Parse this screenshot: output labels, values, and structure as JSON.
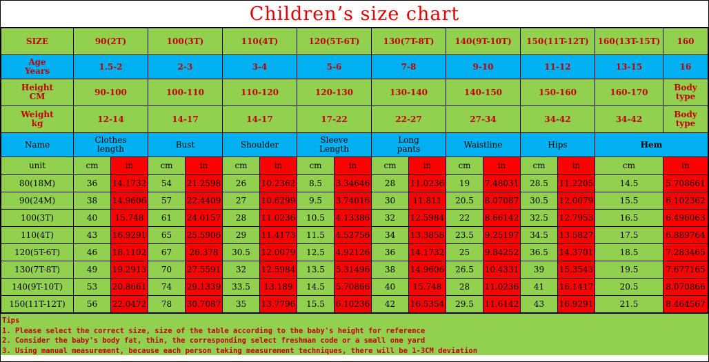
{
  "title": "Children’s size chart",
  "size_row": {
    "label": "SIZE",
    "values": [
      "90(2T)",
      "100(3T)",
      "110(4T)",
      "120(5T-6T)",
      "130(7T-8T)",
      "140(9T-10T)",
      "150(11T-12T)",
      "160(13T-15T)",
      "160"
    ]
  },
  "age_row": {
    "label": "Age\nYears",
    "values": [
      "1.5-2",
      "2-3",
      "3-4",
      "5-6",
      "7-8",
      "9-10",
      "11-12",
      "13-15",
      "16"
    ]
  },
  "height_row": {
    "label": "Height\nCM",
    "values": [
      "90-100",
      "100-110",
      "110-120",
      "120-130",
      "130-140",
      "140-150",
      "150-160",
      "160-170",
      "Body\ntype"
    ]
  },
  "weight_row": {
    "label": "Weight\nkg",
    "values": [
      "12-14",
      "14-17",
      "14-17",
      "17-22",
      "22-27",
      "27-34",
      "34-42",
      "34-42",
      "Body\ntype"
    ]
  },
  "measure_header": {
    "label": "Name",
    "values": [
      "Clothes\nlength",
      "Bust",
      "Shoulder",
      "Sleeve\nLength",
      "Long\npants",
      "Waistline",
      "Hips",
      "Hem"
    ]
  },
  "unit_row": {
    "label": "unit",
    "cm": "cm",
    "in": "in"
  },
  "data_rows": [
    {
      "size": "80(18M)",
      "cells": [
        "36",
        "14.1732",
        "54",
        "21.2598",
        "26",
        "10.2362",
        "8.5",
        "3.34646",
        "28",
        "11.0236",
        "19",
        "7.48031",
        "28.5",
        "11.2205",
        "14.5",
        "5.708661"
      ]
    },
    {
      "size": "90(24M)",
      "cells": [
        "38",
        "14.9606",
        "57",
        "22.4409",
        "27",
        "10.6299",
        "9.5",
        "3.74016",
        "30",
        "11.811",
        "20.5",
        "8.07087",
        "30.5",
        "12.0079",
        "15.5",
        "6.102362"
      ]
    },
    {
      "size": "100(3T)",
      "cells": [
        "40",
        "15.748",
        "61",
        "24.0157",
        "28",
        "11.0236",
        "10.5",
        "4.13386",
        "32",
        "12.5984",
        "22",
        "8.66142",
        "32.5",
        "12.7953",
        "16.5",
        "6.496063"
      ]
    },
    {
      "size": "110(4T)",
      "cells": [
        "43",
        "16.9291",
        "65",
        "25.5906",
        "29",
        "11.4173",
        "11.5",
        "4.52756",
        "34",
        "13.3858",
        "23.5",
        "9.25197",
        "34.5",
        "13.5827",
        "17.5",
        "6.889764"
      ]
    },
    {
      "size": "120(5T-6T)",
      "cells": [
        "46",
        "18.1102",
        "67",
        "26.378",
        "30.5",
        "12.0079",
        "12.5",
        "4.92126",
        "36",
        "14.1732",
        "25",
        "9.84252",
        "36.5",
        "14.3701",
        "18.5",
        "7.283465"
      ]
    },
    {
      "size": "130(7T-8T)",
      "cells": [
        "49",
        "19.2913",
        "70",
        "27.5591",
        "32",
        "12.5984",
        "13.5",
        "5.31496",
        "38",
        "14.9606",
        "26.5",
        "10.4331",
        "39",
        "15.3543",
        "19.5",
        "7.677165"
      ]
    },
    {
      "size": "140(9T-10T)",
      "cells": [
        "53",
        "20.8661",
        "74",
        "29.1339",
        "33.5",
        "13.189",
        "14.5",
        "5.70866",
        "40",
        "15.748",
        "28",
        "11.0236",
        "41",
        "16.1417",
        "20.5",
        "8.070866"
      ]
    },
    {
      "size": "150(11T-12T)",
      "cells": [
        "56",
        "22.0472",
        "78",
        "30.7087",
        "35",
        "13.7796",
        "15.5",
        "6.10236",
        "42",
        "16.5354",
        "29.5",
        "11.6142",
        "43",
        "16.9291",
        "21.5",
        "8.464567"
      ]
    }
  ],
  "tips": {
    "title": "Tips",
    "lines": [
      "1. Please select the correct size, size of the table according to the baby's height for reference",
      "2. Consider the baby's body fat, thin, the corresponding select freshman code or a small one yard",
      "3. Using manual measurement, because each person taking measurement techniques, there will be 1-3CM deviation"
    ]
  },
  "colors": {
    "green": "#92d050",
    "blue": "#00b0f0",
    "red": "#ff0000",
    "text_red": "#c00000"
  }
}
